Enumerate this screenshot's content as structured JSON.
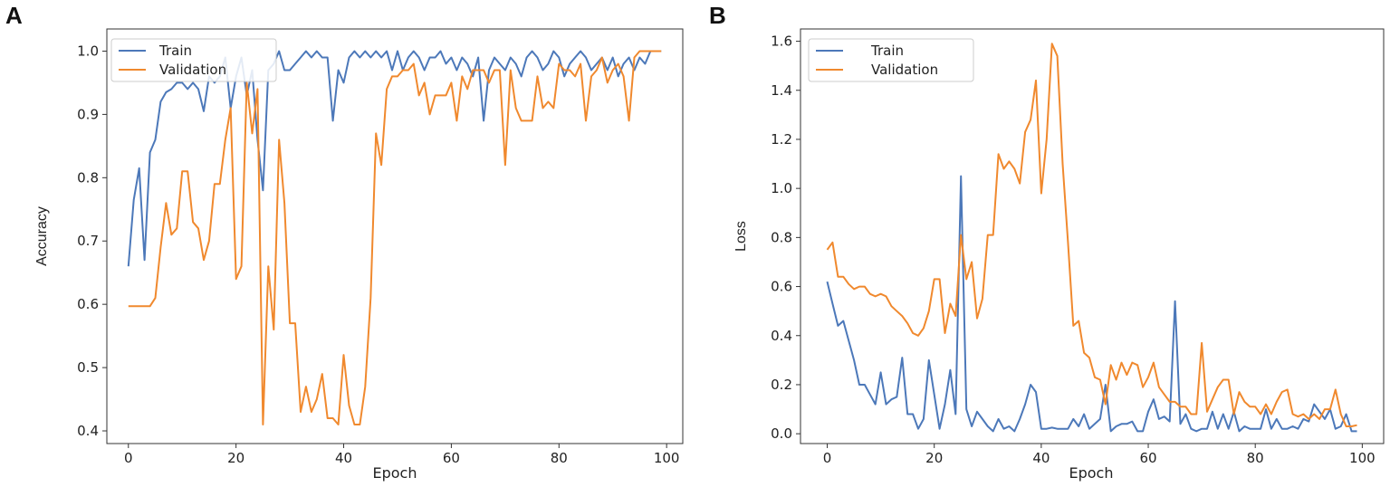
{
  "colors": {
    "train": "#4C78B9",
    "validation": "#F0892E"
  },
  "chart_data": [
    {
      "panel": "A",
      "type": "line",
      "xlabel": "Epoch",
      "ylabel": "Accuracy",
      "xlim": [
        -4,
        103
      ],
      "ylim": [
        0.38,
        1.035
      ],
      "xticks": [
        0,
        20,
        40,
        60,
        80,
        100
      ],
      "xtick_labels": [
        "0",
        "20",
        "40",
        "60",
        "80",
        "100"
      ],
      "yticks": [
        0.4,
        0.5,
        0.6,
        0.7,
        0.8,
        0.9,
        1.0
      ],
      "ytick_labels": [
        "0.4",
        "0.5",
        "0.6",
        "0.7",
        "0.8",
        "0.9",
        "1.0"
      ],
      "legend": {
        "position": "top-left",
        "entries": [
          "Train",
          "Validation"
        ]
      },
      "series": [
        {
          "name": "Train",
          "color": "#4C78B9",
          "values": [
            0.66,
            0.765,
            0.815,
            0.67,
            0.84,
            0.86,
            0.92,
            0.935,
            0.94,
            0.95,
            0.95,
            0.94,
            0.95,
            0.94,
            0.905,
            0.96,
            0.95,
            0.96,
            0.99,
            0.91,
            0.96,
            0.99,
            0.93,
            0.97,
            0.86,
            0.78,
            0.97,
            0.98,
            1.0,
            0.97,
            0.97,
            0.98,
            0.99,
            1.0,
            0.99,
            1.0,
            0.99,
            0.99,
            0.89,
            0.97,
            0.95,
            0.99,
            1.0,
            0.99,
            1.0,
            0.99,
            1.0,
            0.99,
            1.0,
            0.97,
            1.0,
            0.97,
            0.99,
            1.0,
            0.99,
            0.97,
            0.99,
            0.99,
            1.0,
            0.98,
            0.99,
            0.97,
            0.99,
            0.98,
            0.96,
            0.99,
            0.89,
            0.97,
            0.99,
            0.98,
            0.97,
            0.99,
            0.98,
            0.96,
            0.99,
            1.0,
            0.99,
            0.97,
            0.98,
            1.0,
            0.99,
            0.96,
            0.98,
            0.99,
            1.0,
            0.99,
            0.97,
            0.98,
            0.99,
            0.97,
            0.99,
            0.96,
            0.98,
            0.99,
            0.97,
            0.99,
            0.98,
            1.0,
            1.0,
            1.0
          ]
        },
        {
          "name": "Validation",
          "color": "#F0892E",
          "values": [
            0.597,
            0.597,
            0.597,
            0.597,
            0.597,
            0.61,
            0.69,
            0.76,
            0.71,
            0.72,
            0.81,
            0.81,
            0.73,
            0.72,
            0.67,
            0.7,
            0.79,
            0.79,
            0.86,
            0.91,
            0.64,
            0.66,
            0.95,
            0.87,
            0.94,
            0.41,
            0.66,
            0.56,
            0.86,
            0.76,
            0.57,
            0.57,
            0.43,
            0.47,
            0.43,
            0.45,
            0.49,
            0.42,
            0.42,
            0.41,
            0.52,
            0.44,
            0.41,
            0.41,
            0.47,
            0.61,
            0.87,
            0.82,
            0.94,
            0.96,
            0.96,
            0.97,
            0.97,
            0.98,
            0.93,
            0.95,
            0.9,
            0.93,
            0.93,
            0.93,
            0.95,
            0.89,
            0.96,
            0.94,
            0.97,
            0.97,
            0.97,
            0.95,
            0.97,
            0.97,
            0.82,
            0.97,
            0.91,
            0.89,
            0.89,
            0.89,
            0.96,
            0.91,
            0.92,
            0.91,
            0.98,
            0.97,
            0.97,
            0.96,
            0.98,
            0.89,
            0.96,
            0.97,
            0.99,
            0.95,
            0.97,
            0.98,
            0.96,
            0.89,
            0.99,
            1.0,
            1.0,
            1.0,
            1.0,
            1.0
          ]
        }
      ]
    },
    {
      "panel": "B",
      "type": "line",
      "xlabel": "Epoch",
      "ylabel": "Loss",
      "xlim": [
        -5,
        104
      ],
      "ylim": [
        -0.04,
        1.65
      ],
      "xticks": [
        0,
        20,
        40,
        60,
        80,
        100
      ],
      "xtick_labels": [
        "0",
        "20",
        "40",
        "60",
        "80",
        "100"
      ],
      "yticks": [
        0.0,
        0.2,
        0.4,
        0.6,
        0.8,
        1.0,
        1.2,
        1.4,
        1.6
      ],
      "ytick_labels": [
        "0.0",
        "0.2",
        "0.4",
        "0.6",
        "0.8",
        "1.0",
        "1.2",
        "1.4",
        "1.6"
      ],
      "legend": {
        "position": "top-left",
        "entries": [
          "Train",
          "Validation"
        ]
      },
      "series": [
        {
          "name": "Train",
          "color": "#4C78B9",
          "values": [
            0.62,
            0.53,
            0.44,
            0.46,
            0.38,
            0.3,
            0.2,
            0.2,
            0.16,
            0.12,
            0.25,
            0.12,
            0.14,
            0.15,
            0.31,
            0.08,
            0.08,
            0.02,
            0.06,
            0.3,
            0.16,
            0.02,
            0.12,
            0.26,
            0.08,
            1.05,
            0.1,
            0.03,
            0.09,
            0.06,
            0.03,
            0.01,
            0.06,
            0.02,
            0.03,
            0.01,
            0.06,
            0.12,
            0.2,
            0.17,
            0.02,
            0.02,
            0.025,
            0.02,
            0.02,
            0.02,
            0.06,
            0.03,
            0.08,
            0.02,
            0.04,
            0.06,
            0.2,
            0.01,
            0.03,
            0.04,
            0.04,
            0.05,
            0.01,
            0.01,
            0.09,
            0.14,
            0.06,
            0.07,
            0.05,
            0.54,
            0.04,
            0.08,
            0.02,
            0.01,
            0.02,
            0.02,
            0.09,
            0.02,
            0.08,
            0.02,
            0.09,
            0.01,
            0.03,
            0.02,
            0.02,
            0.02,
            0.1,
            0.02,
            0.06,
            0.02,
            0.02,
            0.03,
            0.02,
            0.06,
            0.05,
            0.12,
            0.09,
            0.06,
            0.1,
            0.02,
            0.03,
            0.08,
            0.01,
            0.01
          ]
        },
        {
          "name": "Validation",
          "color": "#F0892E",
          "values": [
            0.75,
            0.78,
            0.64,
            0.64,
            0.61,
            0.59,
            0.6,
            0.6,
            0.57,
            0.56,
            0.57,
            0.56,
            0.52,
            0.5,
            0.48,
            0.45,
            0.41,
            0.4,
            0.43,
            0.5,
            0.63,
            0.63,
            0.41,
            0.53,
            0.48,
            0.81,
            0.63,
            0.7,
            0.47,
            0.55,
            0.81,
            0.81,
            1.14,
            1.08,
            1.11,
            1.08,
            1.02,
            1.23,
            1.28,
            1.44,
            0.98,
            1.2,
            1.59,
            1.54,
            1.1,
            0.78,
            0.44,
            0.46,
            0.33,
            0.31,
            0.23,
            0.22,
            0.12,
            0.28,
            0.22,
            0.29,
            0.24,
            0.29,
            0.28,
            0.19,
            0.23,
            0.29,
            0.19,
            0.16,
            0.13,
            0.13,
            0.11,
            0.11,
            0.08,
            0.08,
            0.37,
            0.09,
            0.14,
            0.19,
            0.22,
            0.22,
            0.08,
            0.17,
            0.13,
            0.11,
            0.11,
            0.08,
            0.12,
            0.08,
            0.13,
            0.17,
            0.18,
            0.08,
            0.07,
            0.08,
            0.06,
            0.08,
            0.06,
            0.1,
            0.1,
            0.18,
            0.08,
            0.03,
            0.03,
            0.035
          ]
        }
      ]
    }
  ]
}
